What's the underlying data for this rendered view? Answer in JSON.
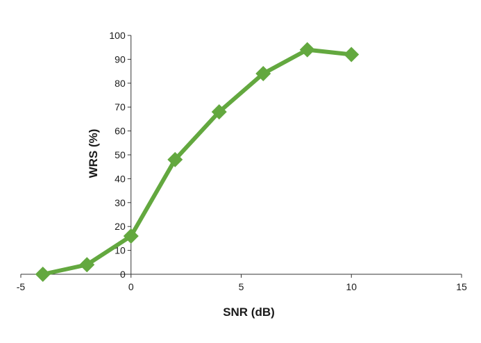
{
  "chart_data": {
    "type": "line",
    "title": "",
    "xlabel": "SNR (dB)",
    "ylabel": "WRS (%)",
    "xlim": [
      -5,
      15
    ],
    "ylim": [
      0,
      100
    ],
    "x_ticks": [
      "-5",
      "0",
      "5",
      "10",
      "15"
    ],
    "y_ticks": [
      "0",
      "10",
      "20",
      "30",
      "40",
      "50",
      "60",
      "70",
      "80",
      "90",
      "100"
    ],
    "grid": false,
    "legend": "none",
    "series": [
      {
        "color": "#63a83f",
        "marker": "diamond",
        "x": [
          -4,
          -2,
          0,
          2,
          4,
          6,
          8,
          10
        ],
        "y": [
          0,
          4,
          16,
          48,
          68,
          84,
          94,
          92
        ]
      }
    ]
  }
}
